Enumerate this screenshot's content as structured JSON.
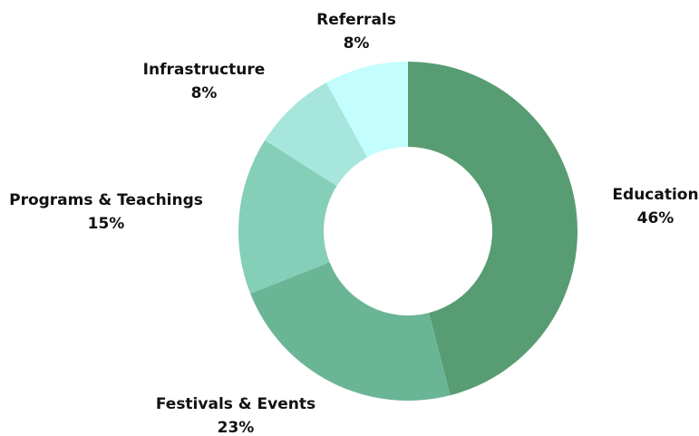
{
  "chart_data": {
    "type": "donut",
    "categories": [
      "Education",
      "Festivals & Events",
      "Programs & Teachings",
      "Infrastructure",
      "Referrals"
    ],
    "values": [
      46,
      23,
      15,
      8,
      8
    ],
    "value_labels": [
      "46%",
      "23%",
      "15%",
      "8%",
      "8%"
    ],
    "colors": [
      "#579c72",
      "#6bb597",
      "#85ceb8",
      "#a6e6dc",
      "#c3fdfd"
    ]
  }
}
